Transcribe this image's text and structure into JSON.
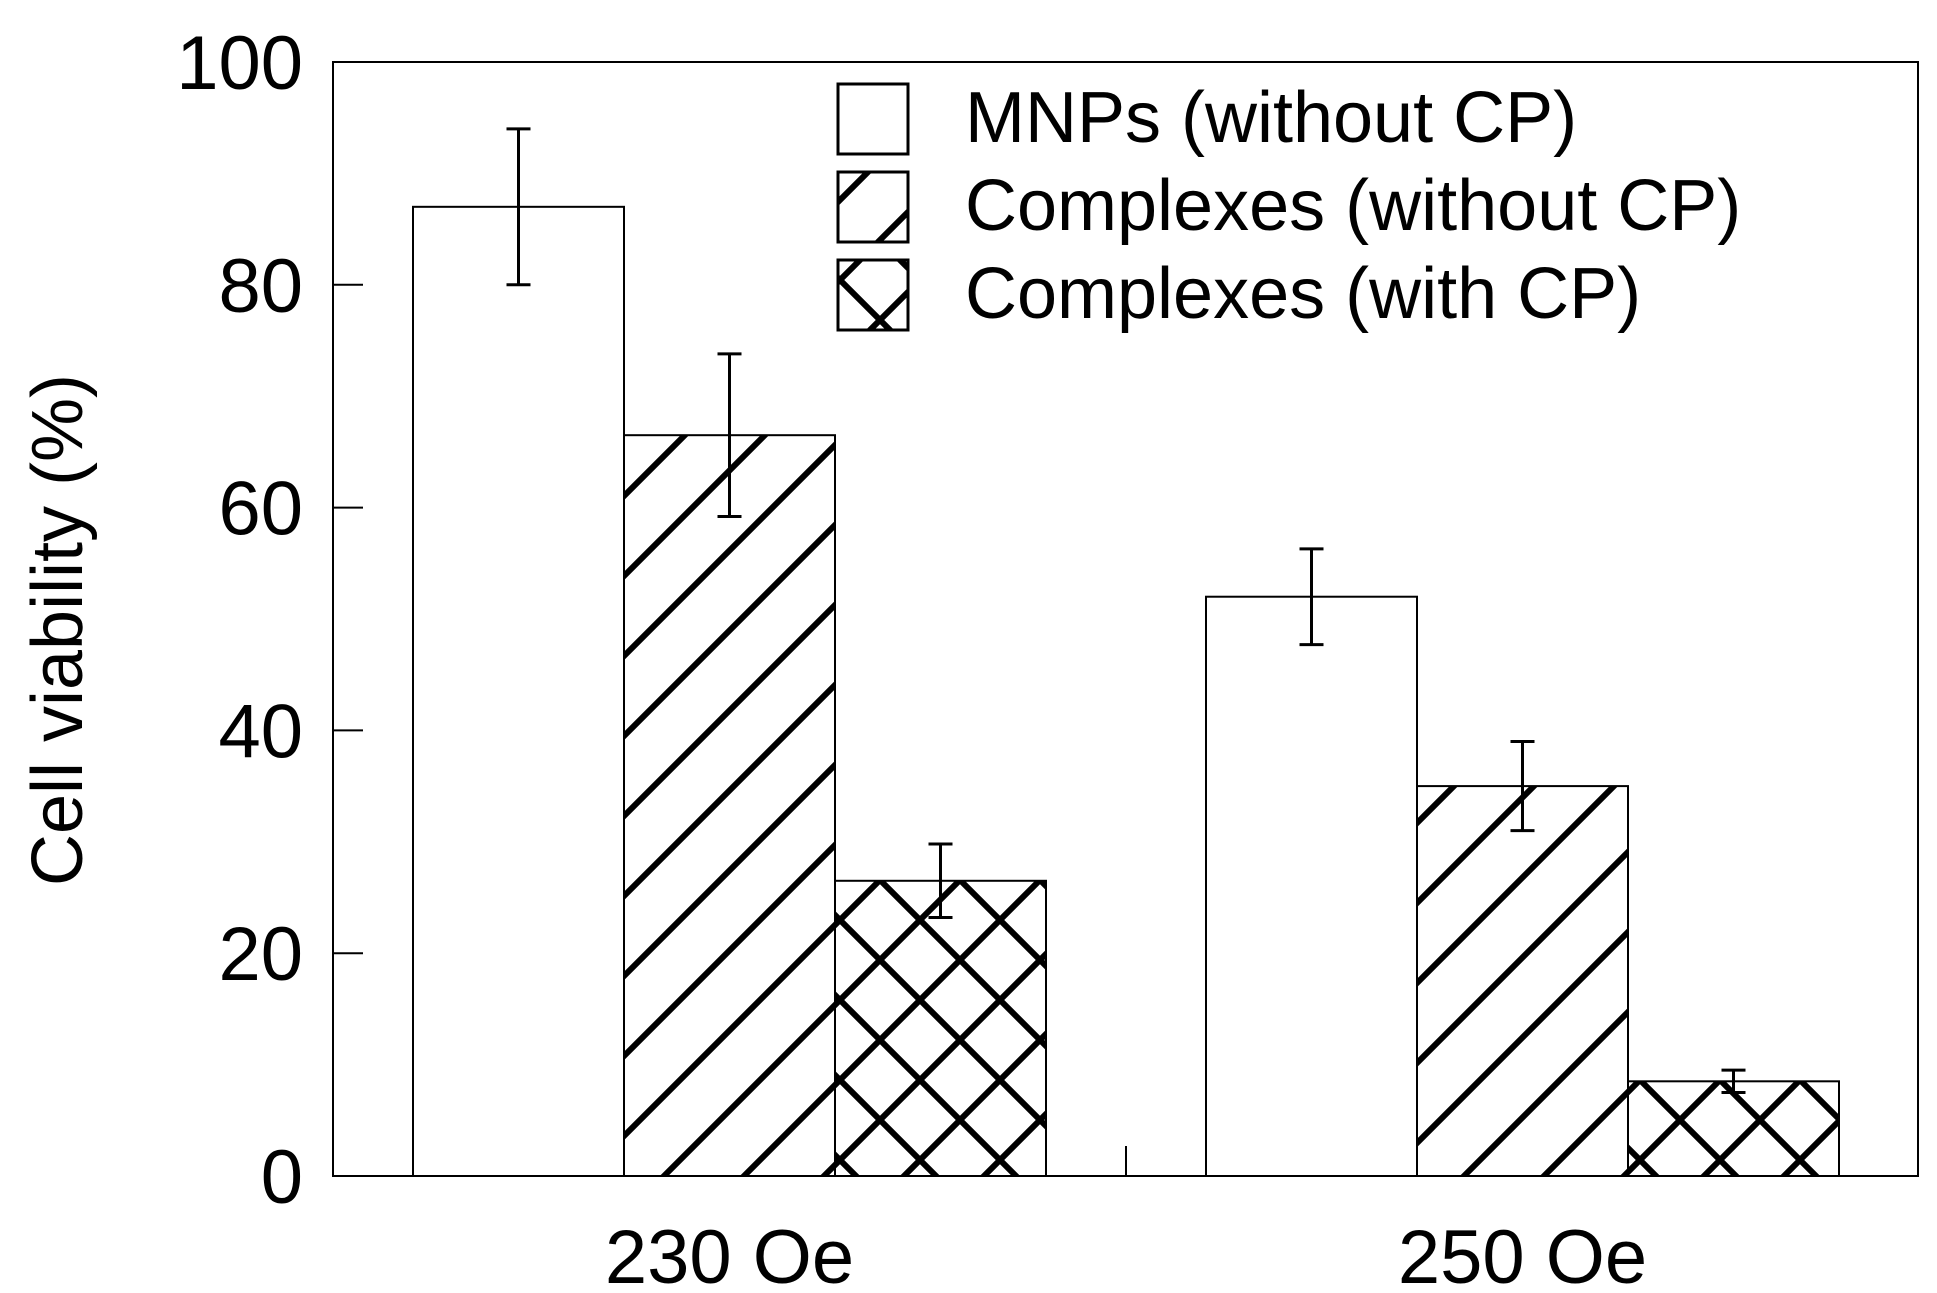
{
  "chart_data": {
    "type": "bar",
    "title": "",
    "xlabel": "",
    "ylabel": "Cell viability (%)",
    "ylim": [
      0,
      100
    ],
    "yticks": [
      0,
      20,
      40,
      60,
      80,
      100
    ],
    "categories": [
      "230 Oe",
      "250 Oe"
    ],
    "series": [
      {
        "name": "MNPs (without CP)",
        "pattern": "none",
        "values": [
          87,
          52
        ],
        "errors": [
          7,
          4.3
        ]
      },
      {
        "name": "Complexes (without CP)",
        "pattern": "diagonal",
        "values": [
          66.5,
          35
        ],
        "errors": [
          7.3,
          4
        ]
      },
      {
        "name": "Complexes (with CP)",
        "pattern": "crosshatch",
        "values": [
          26.5,
          8.5
        ],
        "errors": [
          3.3,
          1
        ]
      }
    ],
    "legend_position": "top-right",
    "grid": false,
    "colors": {
      "bar_fill": "#ffffff",
      "stroke": "#000000"
    }
  }
}
